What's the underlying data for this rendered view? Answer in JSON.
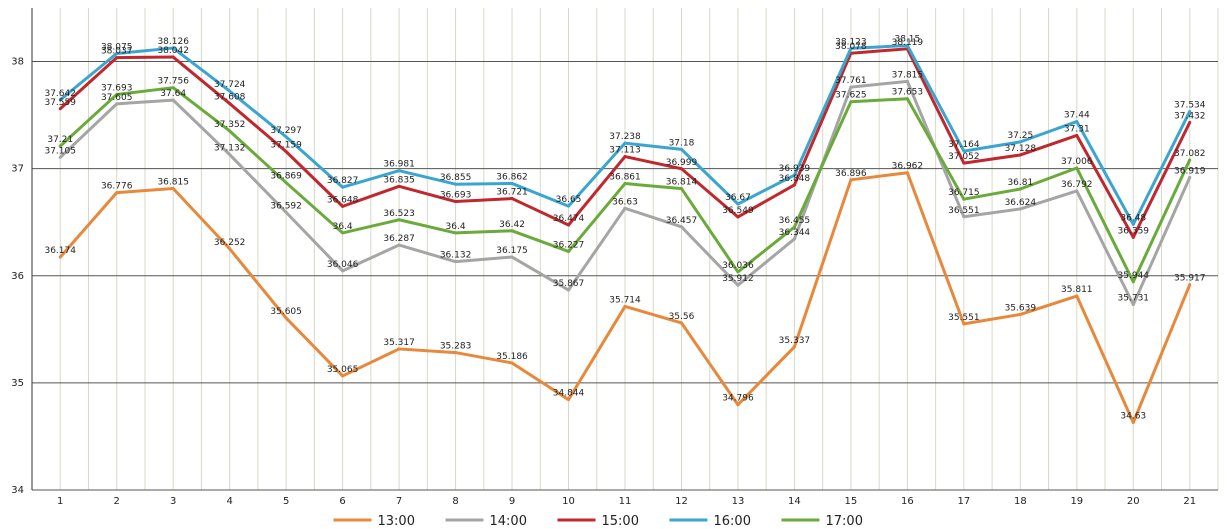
{
  "chart_data": {
    "type": "line",
    "title": "",
    "xlabel": "",
    "ylabel": "",
    "x": [
      1,
      2,
      3,
      4,
      5,
      6,
      7,
      8,
      9,
      10,
      11,
      12,
      13,
      14,
      15,
      16,
      17,
      18,
      19,
      20,
      21
    ],
    "ylim": [
      34,
      38.5
    ],
    "yticks": [
      34,
      35,
      36,
      37,
      38
    ],
    "grid": true,
    "legend": "bottom",
    "series": [
      {
        "name": "13:00",
        "color": "#e8883a",
        "values": [
          36.174,
          36.776,
          36.815,
          36.252,
          35.605,
          35.065,
          35.317,
          35.283,
          35.186,
          34.844,
          35.714,
          35.56,
          34.796,
          35.337,
          36.896,
          36.962,
          35.551,
          35.639,
          35.811,
          34.63,
          35.917
        ]
      },
      {
        "name": "14:00",
        "color": "#a5a5a5",
        "values": [
          37.105,
          37.605,
          37.64,
          37.132,
          36.592,
          36.046,
          36.287,
          36.132,
          36.175,
          35.867,
          36.63,
          36.457,
          35.912,
          36.344,
          37.761,
          37.815,
          36.551,
          36.624,
          36.792,
          35.731,
          36.919
        ]
      },
      {
        "name": "15:00",
        "color": "#c0282d",
        "values": [
          37.559,
          38.037,
          38.042,
          37.608,
          37.159,
          36.648,
          36.835,
          36.693,
          36.721,
          36.474,
          37.113,
          36.999,
          36.549,
          36.848,
          38.078,
          38.119,
          37.052,
          37.128,
          37.31,
          36.359,
          37.432
        ]
      },
      {
        "name": "16:00",
        "color": "#3aa6d0",
        "values": [
          37.642,
          38.075,
          38.126,
          37.724,
          37.297,
          36.827,
          36.981,
          36.855,
          36.862,
          36.65,
          37.238,
          37.18,
          36.67,
          36.939,
          38.123,
          38.15,
          37.164,
          37.25,
          37.44,
          36.48,
          37.534
        ]
      },
      {
        "name": "17:00",
        "color": "#6aaa3a",
        "values": [
          37.21,
          37.693,
          37.756,
          37.352,
          36.869,
          36.4,
          36.523,
          36.4,
          36.42,
          36.227,
          36.861,
          36.814,
          36.036,
          36.455,
          37.625,
          37.653,
          36.715,
          36.81,
          37.006,
          35.944,
          37.082
        ]
      }
    ]
  }
}
